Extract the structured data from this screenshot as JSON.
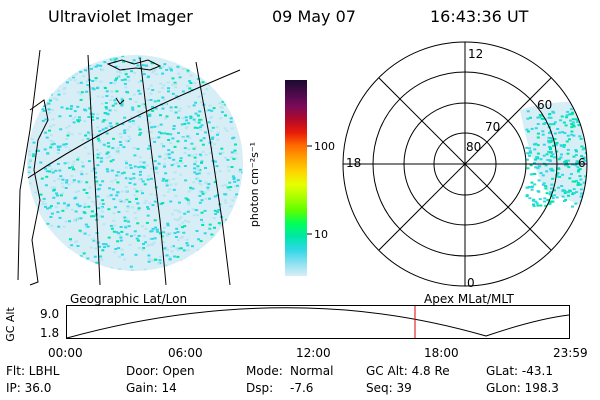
{
  "header": {
    "title": "Ultraviolet Imager",
    "date": "09 May 07",
    "time": "16:43:36 UT"
  },
  "colorbar": {
    "ticks": [
      "100",
      "10"
    ],
    "label": "photon cm⁻²s⁻¹",
    "colors": [
      "#1a0a2e",
      "#4a0a4a",
      "#7a0a5a",
      "#b00a2a",
      "#e81a0a",
      "#ff6a00",
      "#ffa200",
      "#ffd400",
      "#e6ff00",
      "#a8ff00",
      "#5cff00",
      "#00ff5a",
      "#00e6a8",
      "#30d8e6",
      "#8ae0f0",
      "#d8eef6"
    ]
  },
  "polar": {
    "lat_labels": [
      "80",
      "70",
      "60"
    ],
    "mlt_labels": {
      "top": "12",
      "left": "18",
      "right": "6",
      "bottom": "0"
    }
  },
  "map_captions": {
    "left": "Geographic Lat/Lon",
    "right": "Apex MLat/MLT"
  },
  "timeline": {
    "ylabel": "GC Alt",
    "yticks": [
      "9.0",
      "1.8"
    ],
    "xticks": [
      "00:00",
      "06:00",
      "12:00",
      "18:00",
      "23:59"
    ],
    "current_time_marker": "16:43:36"
  },
  "info": {
    "flt": "Flt: LBHL",
    "ip": "IP: 36.0",
    "door": "Door: Open",
    "gain": "Gain: 14",
    "mode_label": "Mode:",
    "mode_value": "Normal",
    "dsp_label": "Dsp:",
    "dsp_value": "-7.6",
    "gcalt": "GC Alt: 4.8 Re",
    "seq": "Seq: 39",
    "glat": "GLat: -43.1",
    "glon": "GLon: 198.3"
  },
  "colors": {
    "image_base": "#d8eef6",
    "image_cyan": "#30d8e6",
    "image_green": "#00e6a8",
    "marker": "#e00000"
  }
}
